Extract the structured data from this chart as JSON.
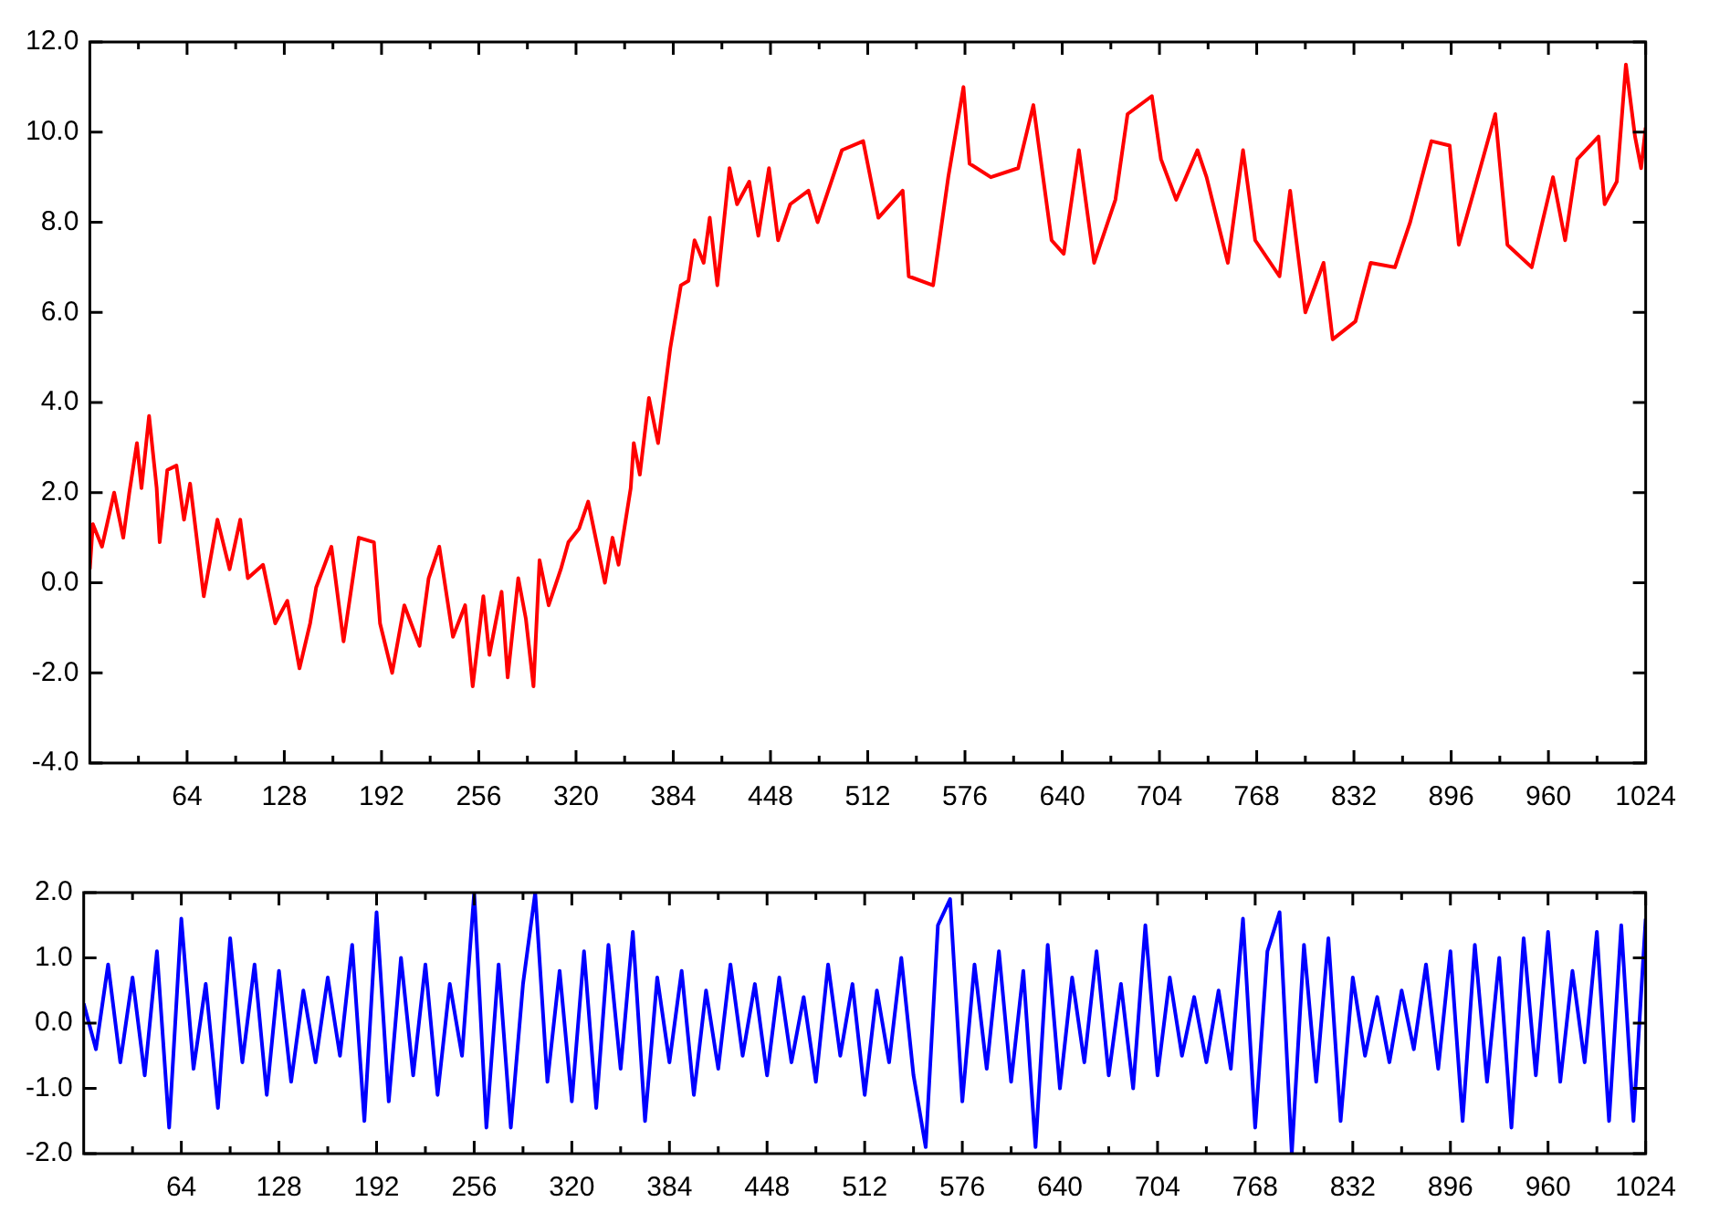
{
  "chart_data": [
    {
      "type": "line",
      "xlim": [
        0,
        1024
      ],
      "ylim": [
        -4,
        12
      ],
      "xticks": [
        {
          "value": 32,
          "label": null
        },
        64,
        {
          "value": 96,
          "label": null
        },
        128,
        {
          "value": 160,
          "label": null
        },
        192,
        {
          "value": 224,
          "label": null
        },
        256,
        {
          "value": 288,
          "label": null
        },
        320,
        {
          "value": 352,
          "label": null
        },
        384,
        {
          "value": 416,
          "label": null
        },
        448,
        {
          "value": 480,
          "label": null
        },
        512,
        {
          "value": 544,
          "label": null
        },
        576,
        {
          "value": 608,
          "label": null
        },
        640,
        {
          "value": 672,
          "label": null
        },
        704,
        {
          "value": 736,
          "label": null
        },
        768,
        {
          "value": 800,
          "label": null
        },
        832,
        {
          "value": 864,
          "label": null
        },
        896,
        {
          "value": 928,
          "label": null
        },
        960,
        {
          "value": 992,
          "label": null
        },
        1024
      ],
      "yticks": [
        {
          "value": -4,
          "label": "-4.0"
        },
        {
          "value": -2,
          "label": "-2.0"
        },
        {
          "value": 0,
          "label": "0.0"
        },
        {
          "value": 2,
          "label": "2.0"
        },
        {
          "value": 4,
          "label": "4.0"
        },
        {
          "value": 6,
          "label": "6.0"
        },
        {
          "value": 8,
          "label": "8.0"
        },
        {
          "value": 10,
          "label": "10.0"
        },
        {
          "value": 12,
          "label": "12.0"
        }
      ],
      "grid": false,
      "legend": false,
      "series": [
        {
          "color": "#ff0000",
          "x": [
            0,
            2,
            8,
            16,
            22,
            26,
            31,
            34,
            39,
            44,
            46,
            51,
            57,
            62,
            66,
            75,
            84,
            92,
            99,
            104,
            114,
            122,
            130,
            138,
            145,
            149,
            159,
            167,
            177,
            187,
            191,
            199,
            207,
            217,
            223,
            230,
            239,
            247,
            252,
            259,
            263,
            271,
            275,
            282,
            287,
            292,
            296,
            302,
            310,
            315,
            322,
            328,
            339,
            344,
            348,
            356,
            358,
            362,
            368,
            374,
            382,
            389,
            394,
            398,
            404,
            408,
            413,
            421,
            426,
            434,
            440,
            447,
            453,
            461,
            473,
            479,
            488,
            495,
            509,
            519,
            535,
            539,
            555,
            565,
            575,
            579,
            593,
            611,
            621,
            633,
            641,
            651,
            661,
            675,
            683,
            699,
            705,
            715,
            729,
            735,
            749,
            759,
            767,
            783,
            790,
            800,
            812,
            818,
            833,
            843,
            859,
            869,
            883,
            895,
            901,
            911,
            925,
            933,
            949,
            963,
            971,
            979,
            993,
            997,
            1005,
            1011,
            1017,
            1021,
            1024
          ],
          "values": [
            0.3,
            1.3,
            0.8,
            2.0,
            1.0,
            2.0,
            3.1,
            2.1,
            3.7,
            2.1,
            0.9,
            2.5,
            2.6,
            1.4,
            2.2,
            -0.3,
            1.4,
            0.3,
            1.4,
            0.1,
            0.4,
            -0.9,
            -0.4,
            -1.9,
            -0.9,
            -0.1,
            0.8,
            -1.3,
            1.0,
            0.9,
            -0.9,
            -2.0,
            -0.5,
            -1.4,
            0.1,
            0.8,
            -1.2,
            -0.5,
            -2.3,
            -0.3,
            -1.6,
            -0.2,
            -2.1,
            0.1,
            -0.8,
            -2.3,
            0.5,
            -0.5,
            0.3,
            0.9,
            1.2,
            1.8,
            0.0,
            1.0,
            0.4,
            2.1,
            3.1,
            2.4,
            4.1,
            3.1,
            5.2,
            6.6,
            6.7,
            7.6,
            7.1,
            8.1,
            6.6,
            9.2,
            8.4,
            8.9,
            7.7,
            9.2,
            7.6,
            8.4,
            8.7,
            8.0,
            8.9,
            9.6,
            9.8,
            8.1,
            8.7,
            6.8,
            6.6,
            9.0,
            11.0,
            9.3,
            9.0,
            9.2,
            10.6,
            7.6,
            7.3,
            9.6,
            7.1,
            8.5,
            10.4,
            10.8,
            9.4,
            8.5,
            9.6,
            9.0,
            7.1,
            9.6,
            7.6,
            6.8,
            8.7,
            6.0,
            7.1,
            5.4,
            5.8,
            7.1,
            7.0,
            8.0,
            9.8,
            9.7,
            7.5,
            8.7,
            10.4,
            7.5,
            7.0,
            9.0,
            7.6,
            9.4,
            9.9,
            8.4,
            8.9,
            11.5,
            9.9,
            9.2,
            10.1
          ]
        }
      ]
    },
    {
      "type": "line",
      "xlim": [
        0,
        1024
      ],
      "ylim": [
        -2,
        2
      ],
      "xticks": [
        {
          "value": 32,
          "label": null
        },
        64,
        {
          "value": 96,
          "label": null
        },
        128,
        {
          "value": 160,
          "label": null
        },
        192,
        {
          "value": 224,
          "label": null
        },
        256,
        {
          "value": 288,
          "label": null
        },
        320,
        {
          "value": 352,
          "label": null
        },
        384,
        {
          "value": 416,
          "label": null
        },
        448,
        {
          "value": 480,
          "label": null
        },
        512,
        {
          "value": 544,
          "label": null
        },
        576,
        {
          "value": 608,
          "label": null
        },
        640,
        {
          "value": 672,
          "label": null
        },
        704,
        {
          "value": 736,
          "label": null
        },
        768,
        {
          "value": 800,
          "label": null
        },
        832,
        {
          "value": 864,
          "label": null
        },
        896,
        {
          "value": 928,
          "label": null
        },
        960,
        {
          "value": 992,
          "label": null
        },
        1024
      ],
      "yticks": [
        {
          "value": -2,
          "label": "-2.0"
        },
        {
          "value": -1,
          "label": "-1.0"
        },
        {
          "value": 0,
          "label": "0.0"
        },
        {
          "value": 1,
          "label": "1.0"
        },
        {
          "value": 2,
          "label": "2.0"
        }
      ],
      "grid": false,
      "legend": false,
      "series": [
        {
          "color": "#0000ff",
          "x": [
            0,
            8,
            16,
            24,
            32,
            40,
            48,
            56,
            64,
            72,
            80,
            88,
            96,
            104,
            112,
            120,
            128,
            136,
            144,
            152,
            160,
            168,
            176,
            184,
            192,
            200,
            208,
            216,
            224,
            232,
            240,
            248,
            256,
            264,
            272,
            280,
            288,
            296,
            304,
            312,
            320,
            328,
            336,
            344,
            352,
            360,
            368,
            376,
            384,
            392,
            400,
            408,
            416,
            424,
            432,
            440,
            448,
            456,
            464,
            472,
            480,
            488,
            496,
            504,
            512,
            520,
            528,
            536,
            544,
            552,
            560,
            568,
            576,
            584,
            592,
            600,
            608,
            616,
            624,
            632,
            640,
            648,
            656,
            664,
            672,
            680,
            688,
            696,
            704,
            712,
            720,
            728,
            736,
            744,
            752,
            760,
            768,
            776,
            784,
            792,
            800,
            808,
            816,
            824,
            832,
            840,
            848,
            856,
            864,
            872,
            880,
            888,
            896,
            904,
            912,
            920,
            928,
            936,
            944,
            952,
            960,
            968,
            976,
            984,
            992,
            1000,
            1008,
            1016,
            1024
          ],
          "values": [
            0.3,
            -0.4,
            0.9,
            -0.6,
            0.7,
            -0.8,
            1.1,
            -1.6,
            1.6,
            -0.7,
            0.6,
            -1.3,
            1.3,
            -0.6,
            0.9,
            -1.1,
            0.8,
            -0.9,
            0.5,
            -0.6,
            0.7,
            -0.5,
            1.2,
            -1.5,
            1.7,
            -1.2,
            1.0,
            -0.8,
            0.9,
            -1.1,
            0.6,
            -0.5,
            2.0,
            -1.6,
            0.9,
            -1.6,
            0.6,
            2.0,
            -0.9,
            0.8,
            -1.2,
            1.1,
            -1.3,
            1.2,
            -0.7,
            1.4,
            -1.5,
            0.7,
            -0.6,
            0.8,
            -1.1,
            0.5,
            -0.7,
            0.9,
            -0.5,
            0.6,
            -0.8,
            0.7,
            -0.6,
            0.4,
            -0.9,
            0.9,
            -0.5,
            0.6,
            -1.1,
            0.5,
            -0.6,
            1.0,
            -0.8,
            -1.9,
            1.5,
            1.9,
            -1.2,
            0.9,
            -0.7,
            1.1,
            -0.9,
            0.8,
            -1.9,
            1.2,
            -1.0,
            0.7,
            -0.6,
            1.1,
            -0.8,
            0.6,
            -1.0,
            1.5,
            -0.8,
            0.7,
            -0.5,
            0.4,
            -0.6,
            0.5,
            -0.7,
            1.6,
            -1.6,
            1.1,
            1.7,
            -2.0,
            1.2,
            -0.9,
            1.3,
            -1.5,
            0.7,
            -0.5,
            0.4,
            -0.6,
            0.5,
            -0.4,
            0.9,
            -0.7,
            1.1,
            -1.5,
            1.2,
            -0.9,
            1.0,
            -1.6,
            1.3,
            -0.8,
            1.4,
            -0.9,
            0.8,
            -0.6,
            1.4,
            -1.5,
            1.5,
            -1.5,
            1.6
          ]
        }
      ]
    }
  ]
}
